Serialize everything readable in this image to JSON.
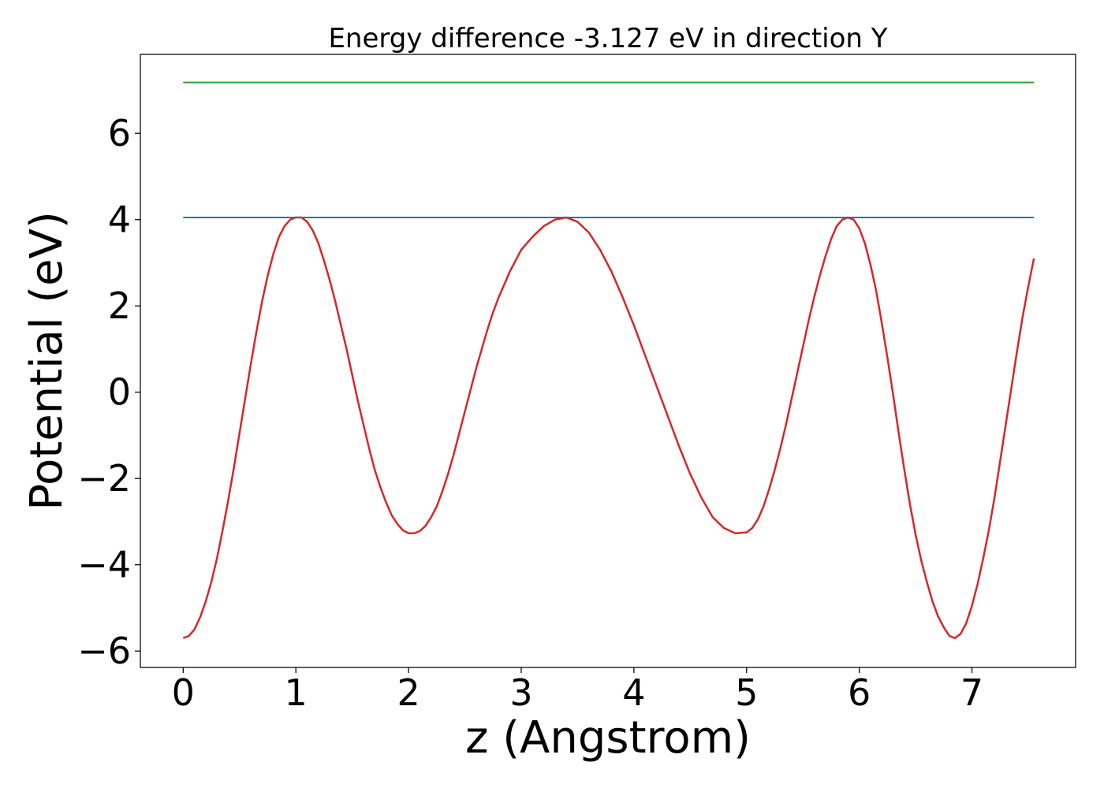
{
  "chart_data": {
    "type": "line",
    "title": "Energy difference -3.127 eV in direction Y",
    "xlabel": "z (Angstrom)",
    "ylabel": "Potential (eV)",
    "xlim": [
      -0.38,
      7.92
    ],
    "ylim": [
      -6.38,
      7.83
    ],
    "xticks": [
      0,
      1,
      2,
      3,
      4,
      5,
      6,
      7
    ],
    "yticks": [
      -6,
      -4,
      -2,
      0,
      2,
      4,
      6
    ],
    "ytick_labels": [
      "−6",
      "−4",
      "−2",
      "0",
      "2",
      "4",
      "6"
    ],
    "grid": false,
    "legend": "none",
    "series": [
      {
        "color": "#d62728",
        "x": [
          0.0,
          0.05,
          0.1,
          0.15,
          0.2,
          0.25,
          0.3,
          0.35,
          0.4,
          0.45,
          0.5,
          0.55,
          0.6,
          0.65,
          0.7,
          0.75,
          0.8,
          0.85,
          0.9,
          0.95,
          1.0,
          1.05,
          1.1,
          1.15,
          1.2,
          1.25,
          1.3,
          1.35,
          1.4,
          1.45,
          1.5,
          1.55,
          1.6,
          1.65,
          1.7,
          1.75,
          1.8,
          1.85,
          1.9,
          1.95,
          2.0,
          2.05,
          2.1,
          2.15,
          2.2,
          2.25,
          2.3,
          2.35,
          2.4,
          2.45,
          2.5,
          2.55,
          2.6,
          2.65,
          2.7,
          2.75,
          2.8,
          2.85,
          2.9,
          2.95,
          3.0,
          3.1,
          3.2,
          3.3,
          3.4,
          3.5,
          3.6,
          3.7,
          3.8,
          3.9,
          4.0,
          4.1,
          4.2,
          4.3,
          4.4,
          4.5,
          4.6,
          4.7,
          4.8,
          4.9,
          5.0,
          5.05,
          5.1,
          5.15,
          5.2,
          5.25,
          5.3,
          5.35,
          5.4,
          5.45,
          5.5,
          5.55,
          5.6,
          5.65,
          5.7,
          5.75,
          5.8,
          5.85,
          5.9,
          5.95,
          6.0,
          6.05,
          6.1,
          6.15,
          6.2,
          6.25,
          6.3,
          6.35,
          6.4,
          6.45,
          6.5,
          6.55,
          6.6,
          6.65,
          6.7,
          6.75,
          6.8,
          6.85,
          6.9,
          6.95,
          7.0,
          7.05,
          7.1,
          7.15,
          7.2,
          7.25,
          7.3,
          7.35,
          7.4,
          7.45,
          7.5,
          7.55
        ],
        "y": [
          -5.7,
          -5.65,
          -5.5,
          -5.22,
          -4.85,
          -4.4,
          -3.85,
          -3.2,
          -2.5,
          -1.75,
          -0.95,
          -0.15,
          0.65,
          1.4,
          2.1,
          2.7,
          3.2,
          3.6,
          3.85,
          4.0,
          4.05,
          4.05,
          3.95,
          3.75,
          3.45,
          3.05,
          2.6,
          2.1,
          1.55,
          1.0,
          0.4,
          -0.2,
          -0.75,
          -1.3,
          -1.8,
          -2.2,
          -2.55,
          -2.85,
          -3.05,
          -3.2,
          -3.27,
          -3.27,
          -3.22,
          -3.1,
          -2.9,
          -2.65,
          -2.3,
          -1.9,
          -1.45,
          -0.95,
          -0.45,
          0.05,
          0.55,
          1.0,
          1.45,
          1.85,
          2.2,
          2.5,
          2.8,
          3.05,
          3.3,
          3.6,
          3.85,
          4.0,
          4.05,
          3.95,
          3.7,
          3.3,
          2.8,
          2.2,
          1.55,
          0.85,
          0.15,
          -0.55,
          -1.25,
          -1.9,
          -2.45,
          -2.9,
          -3.15,
          -3.27,
          -3.25,
          -3.15,
          -2.95,
          -2.65,
          -2.25,
          -1.8,
          -1.3,
          -0.75,
          -0.15,
          0.45,
          1.05,
          1.65,
          2.2,
          2.7,
          3.15,
          3.55,
          3.85,
          4.0,
          4.05,
          4.0,
          3.8,
          3.45,
          2.95,
          2.35,
          1.6,
          0.8,
          -0.05,
          -0.95,
          -1.8,
          -2.6,
          -3.3,
          -3.9,
          -4.4,
          -4.85,
          -5.2,
          -5.45,
          -5.65,
          -5.7,
          -5.6,
          -5.35,
          -4.95,
          -4.45,
          -3.85,
          -3.2,
          -2.45,
          -1.6,
          -0.75,
          0.1,
          0.95,
          1.75,
          2.45,
          3.1
        ]
      },
      {
        "color": "#1f77b4",
        "x": [
          0.0,
          7.55
        ],
        "y": [
          4.05,
          4.05
        ]
      },
      {
        "color": "#2ca02c",
        "x": [
          0.0,
          7.55
        ],
        "y": [
          7.18,
          7.18
        ]
      }
    ]
  }
}
